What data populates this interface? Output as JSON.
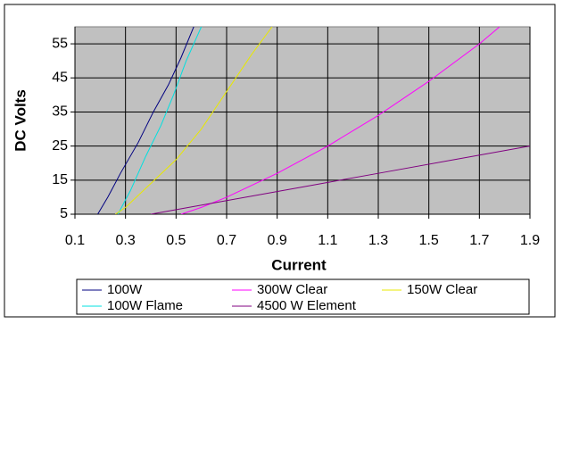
{
  "chart_data": {
    "type": "line",
    "x_label": "Current",
    "y_label": "DC Volts",
    "xlim": [
      0.1,
      1.9
    ],
    "xticks": [
      0.1,
      0.3,
      0.5,
      0.7,
      0.9,
      1.1,
      1.3,
      1.5,
      1.7,
      1.9
    ],
    "ylim": [
      5,
      60
    ],
    "yticks": [
      5,
      15,
      25,
      35,
      45,
      55
    ],
    "grid": true,
    "series": [
      {
        "name": "100W",
        "color": "#000080",
        "x": [
          0.19,
          0.23,
          0.28,
          0.35,
          0.41,
          0.47,
          0.52,
          0.57
        ],
        "values": [
          5,
          10,
          17,
          26,
          35,
          43,
          51,
          60
        ]
      },
      {
        "name": "100W Flame",
        "color": "#00e0e0",
        "x": [
          0.27,
          0.32,
          0.38,
          0.44,
          0.49,
          0.54,
          0.6
        ],
        "values": [
          5,
          12,
          22,
          31,
          40,
          50,
          60
        ]
      },
      {
        "name": "300W Clear",
        "color": "#ff00ff",
        "x": [
          0.52,
          0.6,
          0.7,
          0.9,
          1.1,
          1.3,
          1.5,
          1.7,
          1.78
        ],
        "values": [
          5,
          7,
          10,
          17,
          25,
          34,
          44,
          55,
          60
        ]
      },
      {
        "name": "4500 W Element",
        "color": "#800080",
        "x": [
          0.4,
          0.7,
          1.0,
          1.3,
          1.6,
          1.9
        ],
        "values": [
          5,
          9,
          13,
          17,
          21,
          25
        ]
      },
      {
        "name": "150W Clear",
        "color": "#e8e800",
        "x": [
          0.26,
          0.3,
          0.4,
          0.5,
          0.6,
          0.7,
          0.8,
          0.88
        ],
        "values": [
          5,
          7,
          14,
          21,
          30,
          41,
          52,
          60
        ]
      }
    ]
  }
}
